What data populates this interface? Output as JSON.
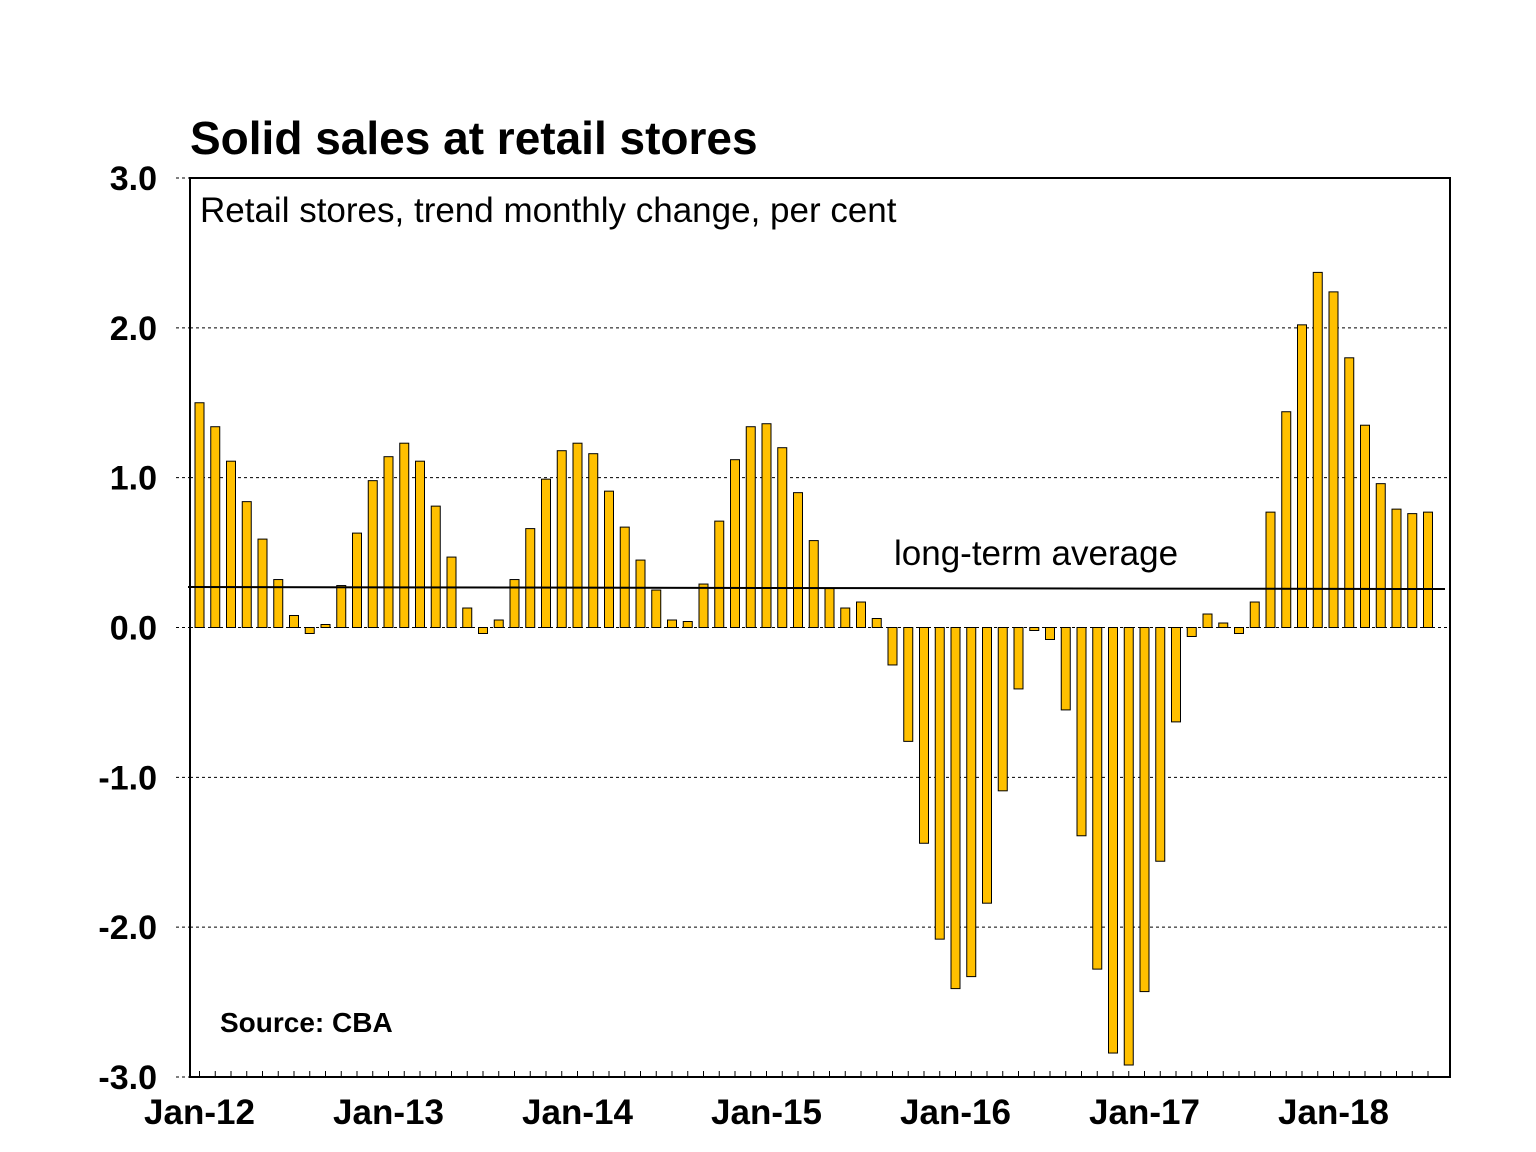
{
  "chart_data": {
    "type": "bar",
    "title": "Solid sales at retail stores",
    "subtitle": "Retail stores, trend monthly change, per cent",
    "source": "Source: CBA",
    "annotation": "long-term average",
    "long_term_average": 0.27,
    "ylim": [
      -3.0,
      3.0
    ],
    "yticks": [
      "3.0",
      "2.0",
      "1.0",
      "0.0",
      "-1.0",
      "-2.0",
      "-3.0"
    ],
    "ytick_values": [
      3,
      2,
      1,
      0,
      -1,
      -2,
      -3
    ],
    "xtick_labels": [
      "Jan-12",
      "Jan-13",
      "Jan-14",
      "Jan-15",
      "Jan-16",
      "Jan-17",
      "Jan-18"
    ],
    "grid": true,
    "bar_color": "#FFC000",
    "start_month": "Jan-12",
    "values": [
      1.5,
      1.34,
      1.11,
      0.84,
      0.59,
      0.32,
      0.08,
      -0.04,
      0.02,
      0.28,
      0.63,
      0.98,
      1.14,
      1.23,
      1.11,
      0.81,
      0.47,
      0.13,
      -0.04,
      0.05,
      0.32,
      0.66,
      0.99,
      1.18,
      1.23,
      1.16,
      0.91,
      0.67,
      0.45,
      0.25,
      0.05,
      0.04,
      0.29,
      0.71,
      1.12,
      1.34,
      1.36,
      1.2,
      0.9,
      0.58,
      0.26,
      0.13,
      0.17,
      0.06,
      -0.25,
      -0.76,
      -1.44,
      -2.08,
      -2.41,
      -2.33,
      -1.84,
      -1.09,
      -0.41,
      -0.02,
      -0.08,
      -0.55,
      -1.39,
      -2.28,
      -2.84,
      -2.92,
      -2.43,
      -1.56,
      -0.63,
      -0.06,
      0.09,
      0.03,
      -0.04,
      0.17,
      0.77,
      1.44,
      2.02,
      2.37,
      2.24,
      1.8,
      1.35,
      0.96,
      0.79,
      0.76,
      0.77
    ]
  }
}
